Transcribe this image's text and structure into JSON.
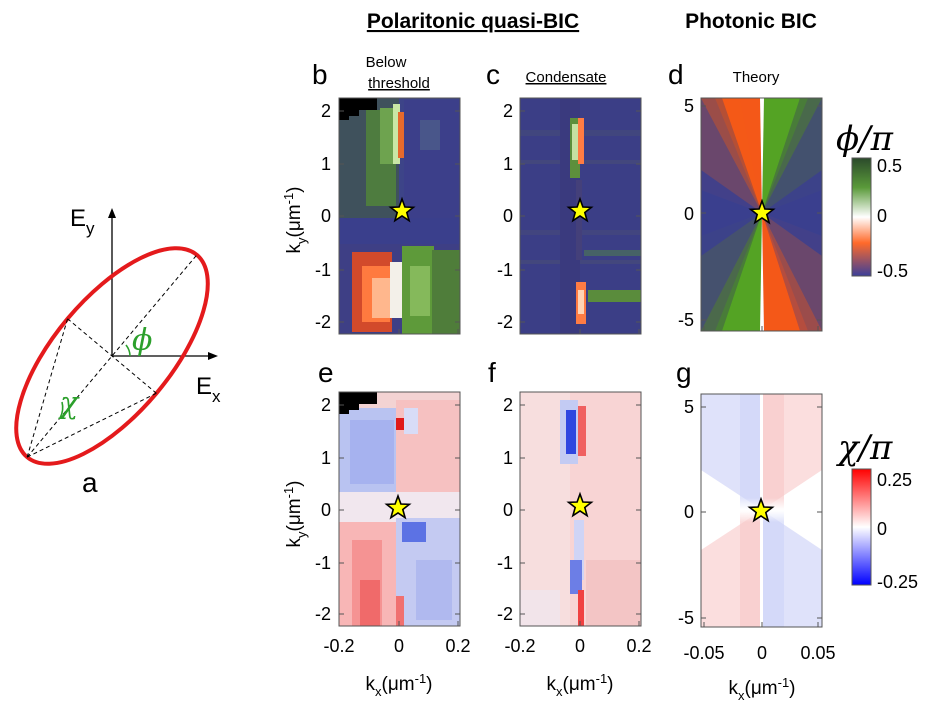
{
  "headings": {
    "polaritonic": "Polaritonic quasi-BIC",
    "photonic": "Photonic BIC"
  },
  "panels": {
    "a": "a",
    "b": "b",
    "c": "c",
    "d": "d",
    "e": "e",
    "f": "f",
    "g": "g"
  },
  "subtitles": {
    "below_line1": "Below",
    "below_line2": "threshold",
    "condensate": "Condensate",
    "theory": "Theory"
  },
  "ellipse_diagram": {
    "ex_label": "E",
    "ex_sub": "x",
    "ey_label": "E",
    "ey_sub": "y",
    "phi": "ϕ",
    "chi": "χ",
    "ellipse_color": "#e41a1c",
    "angle_color": "#2ca02c"
  },
  "axes": {
    "exp_y_ticks": [
      "2",
      "1",
      "0",
      "-1",
      "-2"
    ],
    "exp_x_ticks": [
      "-0.2",
      "0",
      "0.2"
    ],
    "theory_y_ticks": [
      "5",
      "0",
      "-5"
    ],
    "theory_x_ticks": [
      "-0.05",
      "0",
      "0.05"
    ],
    "ky_label": "k",
    "ky_sub": "y",
    "ky_unit": "(μm",
    "ky_exp": "-1",
    "ky_close": ")",
    "kx_label": "k",
    "kx_sub": "x",
    "kx_unit": "(μm",
    "kx_exp": "-1",
    "kx_close": ")"
  },
  "colorbars": {
    "phi": {
      "symbol": "ϕ/π",
      "ticks": [
        "0.5",
        "0",
        "-0.5"
      ],
      "colors": [
        "#2e4d2e",
        "#4e8b2b",
        "#ffffff",
        "#ff6a2a",
        "#3b3f9a"
      ]
    },
    "chi": {
      "symbol": "χ/π",
      "ticks": [
        "0.25",
        "0",
        "-0.25"
      ],
      "colors": [
        "#ff0000",
        "#ffffff",
        "#0000ff"
      ]
    }
  },
  "star_color": "#ffff00"
}
